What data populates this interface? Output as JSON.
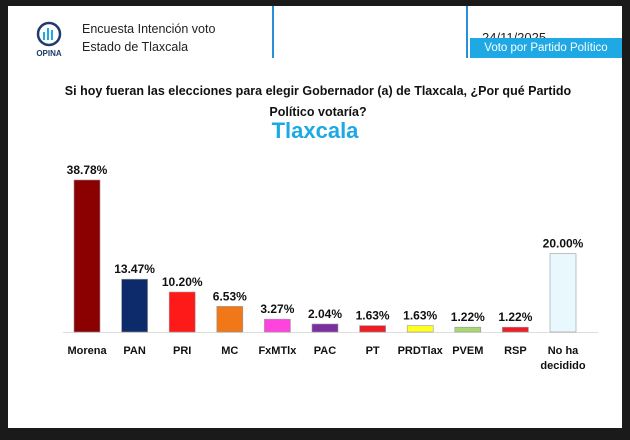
{
  "header": {
    "logo_text": "OPINA",
    "survey_title": "Encuesta Intención voto",
    "state": "Estado de Tlaxcala",
    "date": "24/11/2025",
    "section_badge": "Voto por Partido Político"
  },
  "question": "Si hoy fueran las elecciones para elegir Gobernador (a) de Tlaxcala, ¿Por qué Partido Político votaría?",
  "region_title": "Tlaxcala",
  "colors": {
    "accent": "#1ea9e4"
  },
  "chart_data": {
    "type": "bar",
    "title": "Tlaxcala",
    "xlabel": "",
    "ylabel": "",
    "ylim": [
      0,
      40
    ],
    "grid": false,
    "categories": [
      "Morena",
      "PAN",
      "PRI",
      "MC",
      "FxMTlx",
      "PAC",
      "PT",
      "PRDTlax",
      "PVEM",
      "RSP",
      "No ha decidido"
    ],
    "values": [
      38.78,
      13.47,
      10.2,
      6.53,
      3.27,
      2.04,
      1.63,
      1.63,
      1.22,
      1.22,
      20.0
    ],
    "labels": [
      "38.78%",
      "13.47%",
      "10.20%",
      "6.53%",
      "3.27%",
      "2.04%",
      "1.63%",
      "1.63%",
      "1.22%",
      "1.22%",
      "20.00%"
    ],
    "bar_colors": [
      "#8b0000",
      "#0d2a6b",
      "#ff1a1a",
      "#f07818",
      "#ff44dd",
      "#7a30a0",
      "#ee1c24",
      "#ffff20",
      "#a8d870",
      "#ee1c24",
      "#e8f8fd"
    ]
  }
}
